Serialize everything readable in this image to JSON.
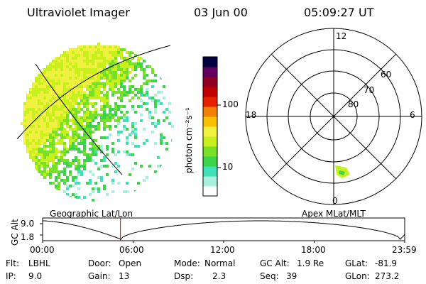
{
  "header": {
    "title": "Ultraviolet Imager",
    "date": "03 Jun 00",
    "time": "05:09:27 UT"
  },
  "image_panel": {
    "label": "Geographic Lat/Lon"
  },
  "colorbar": {
    "unit_label": "photon cm⁻²s⁻¹",
    "tick_labels": [
      "100",
      "10"
    ],
    "colors": [
      "#ffffff",
      "#a8f0dc",
      "#40e0b8",
      "#3cd44c",
      "#78e028",
      "#c8f01c",
      "#f0f040",
      "#f8c000",
      "#f08000",
      "#e82000",
      "#c00000",
      "#900020",
      "#600060",
      "#000040"
    ]
  },
  "polar_plot": {
    "label": "Apex MLat/MLT",
    "mlt_labels": [
      "12",
      "18",
      "6",
      "0"
    ],
    "mlat_labels": [
      "60",
      "70",
      "80"
    ],
    "feature_color": "#c8f01c"
  },
  "timeline": {
    "axis_label": "GC Alt",
    "y_labels": [
      "9.0",
      "1.8"
    ],
    "x_labels": [
      "00:00",
      "06:00",
      "12:00",
      "18:00",
      "23:59"
    ],
    "current_time_hours": 5.16,
    "marker_color": "#c00000"
  },
  "footer": {
    "flt_label": "Flt:",
    "flt_value": "LBHL",
    "ip_label": "IP:",
    "ip_value": "9.0",
    "door_label": "Door:",
    "door_value": "Open",
    "gain_label": "Gain:",
    "gain_value": "13",
    "mode_label": "Mode:",
    "mode_value": "Normal",
    "dsp_label": "Dsp:",
    "dsp_value": "2.3",
    "gcalt_label": "GC Alt:",
    "gcalt_value": "1.9 Re",
    "seq_label": "Seq:",
    "seq_value": "39",
    "glat_label": "GLat:",
    "glat_value": "-81.9",
    "glon_label": "GLon:",
    "glon_value": "273.2"
  }
}
